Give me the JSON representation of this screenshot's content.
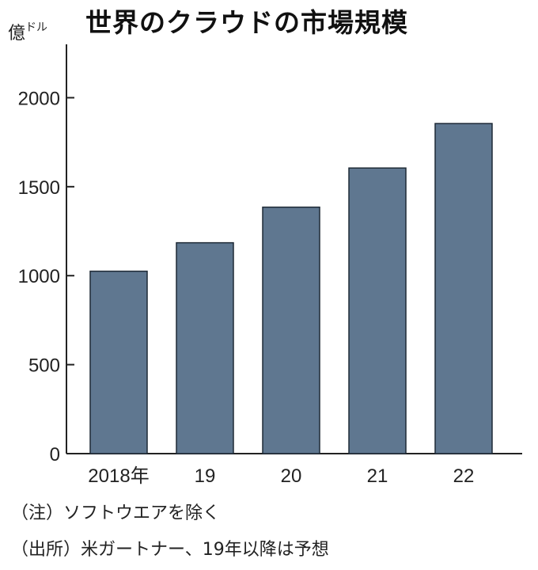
{
  "title": "世界のクラウドの市場規模",
  "unit": {
    "main": "億",
    "small": "ドル"
  },
  "notes": [
    "（注）ソフトウエアを除く",
    "（出所）米ガートナー、19年以降は予想"
  ],
  "colors": {
    "bar": "#5f7790",
    "bar_border": "#1f2a36",
    "axis": "#222222",
    "text": "#222222"
  },
  "chart_data": {
    "type": "bar",
    "categories": [
      "2018年",
      "19",
      "20",
      "21",
      "22"
    ],
    "values": [
      1025,
      1185,
      1385,
      1605,
      1855
    ],
    "ylim": [
      0,
      2300
    ],
    "yticks": [
      0,
      500,
      1000,
      1500,
      2000
    ],
    "grid": false,
    "title": "世界のクラウドの市場規模",
    "xlabel": "",
    "ylabel": "億ドル"
  }
}
